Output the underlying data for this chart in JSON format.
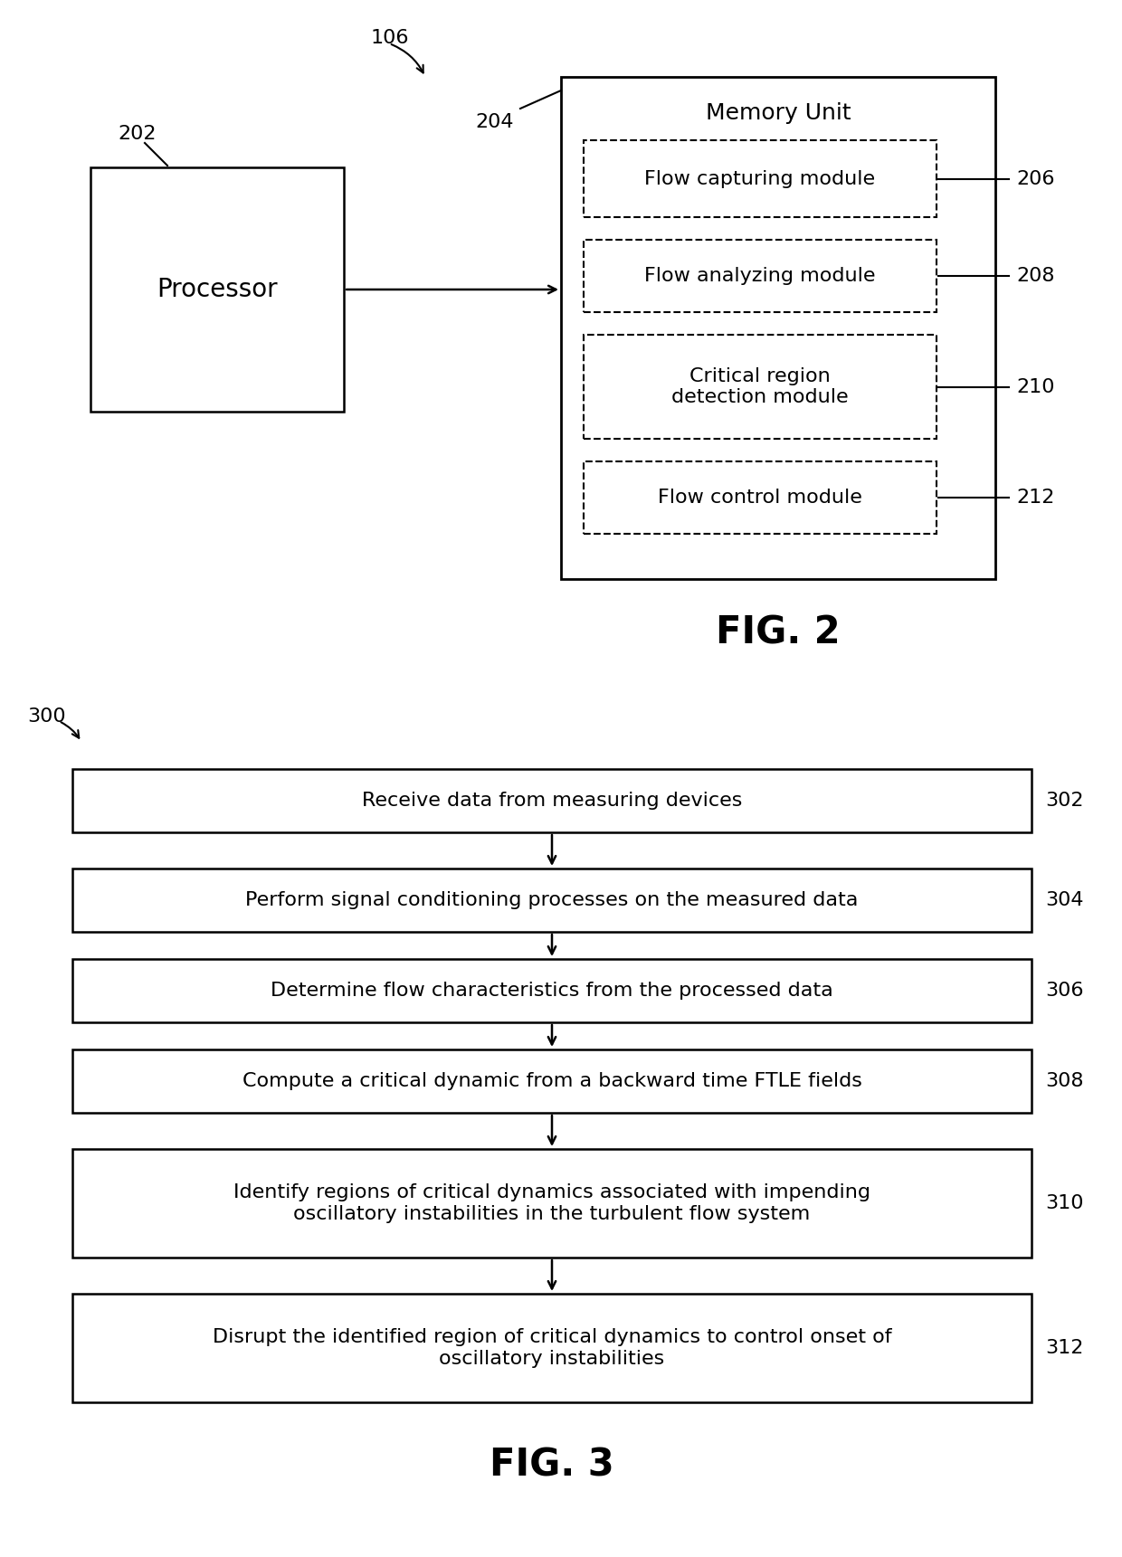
{
  "fig2": {
    "title": "FIG. 2",
    "label_106": "106",
    "label_202": "202",
    "label_204": "204",
    "processor_text": "Processor",
    "memory_unit_title": "Memory Unit",
    "modules": [
      {
        "text": "Flow capturing module",
        "label": "206"
      },
      {
        "text": "Flow analyzing module",
        "label": "208"
      },
      {
        "text": "Critical region\ndetection module",
        "label": "210"
      },
      {
        "text": "Flow control module",
        "label": "212"
      }
    ]
  },
  "fig3": {
    "title": "FIG. 3",
    "label_300": "300",
    "steps": [
      {
        "text": "Receive data from measuring devices",
        "label": "302"
      },
      {
        "text": "Perform signal conditioning processes on the measured data",
        "label": "304"
      },
      {
        "text": "Determine flow characteristics from the processed data",
        "label": "306"
      },
      {
        "text": "Compute a critical dynamic from a backward time FTLE fields",
        "label": "308"
      },
      {
        "text": "Identify regions of critical dynamics associated with impending\noscillatory instabilities in the turbulent flow system",
        "label": "310"
      },
      {
        "text": "Disrupt the identified region of critical dynamics to control onset of\noscillatory instabilities",
        "label": "312"
      }
    ]
  },
  "bg_color": "#ffffff",
  "box_edge_color": "#000000",
  "text_color": "#000000",
  "dashed_color": "#000000",
  "arrow_color": "#000000"
}
